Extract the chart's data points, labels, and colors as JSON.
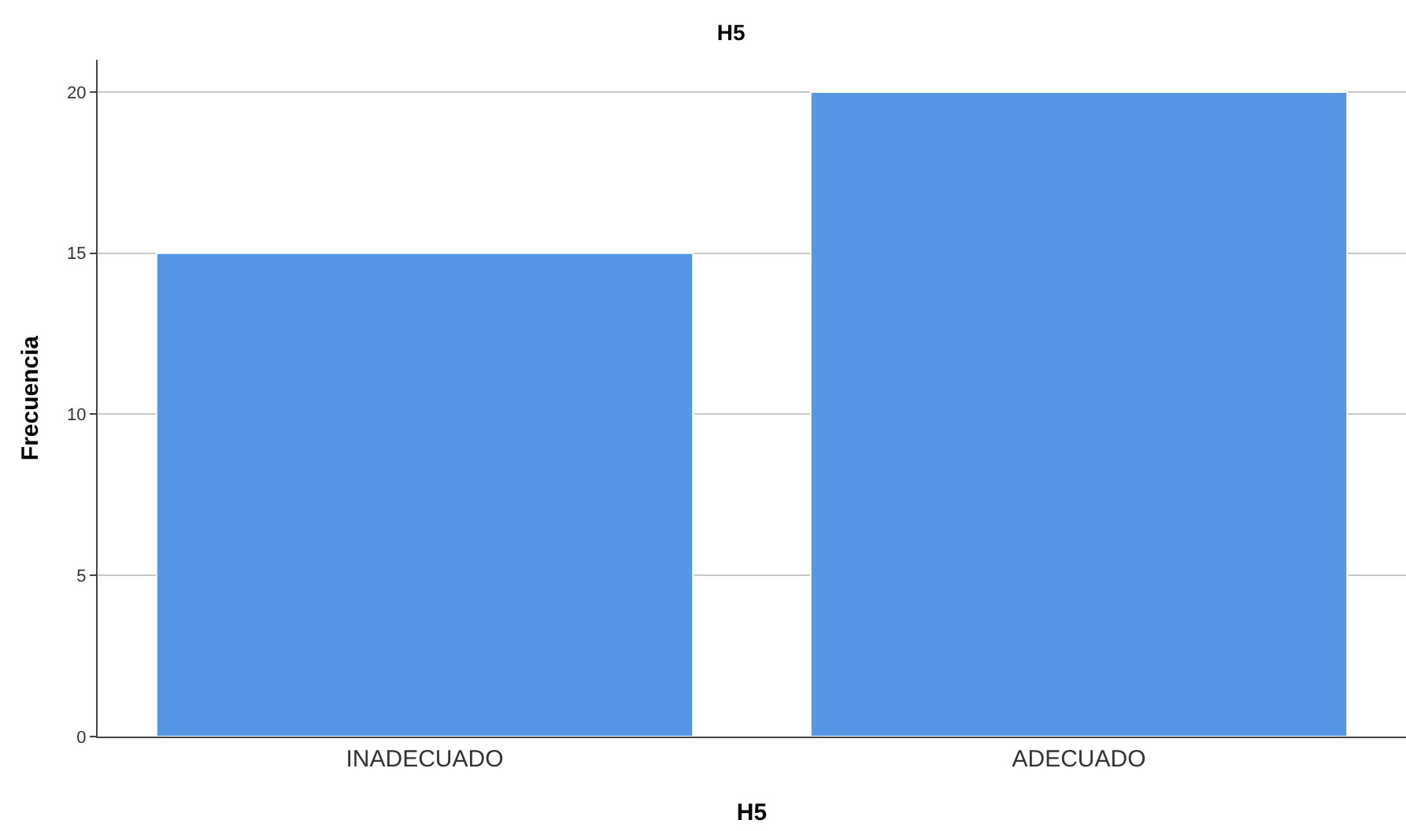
{
  "chart_data": {
    "type": "bar",
    "title": "H5",
    "xlabel": "H5",
    "ylabel": "Frecuencia",
    "categories": [
      "INADECUADO",
      "ADECUADO"
    ],
    "values": [
      15,
      20
    ],
    "color": "#5596e6",
    "ylim": [
      0,
      21
    ],
    "yticks": [
      0,
      5,
      10,
      15,
      20
    ],
    "grid": "y"
  }
}
